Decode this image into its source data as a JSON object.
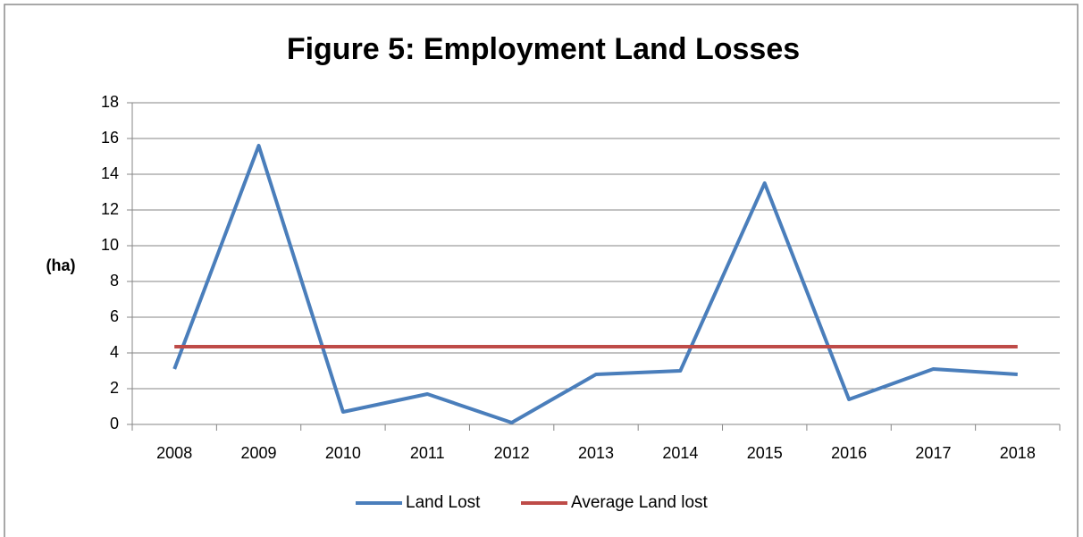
{
  "chart_data": {
    "type": "line",
    "title": "Figure 5: Employment Land Losses",
    "y_label": "(ha)",
    "categories": [
      "2008",
      "2009",
      "2010",
      "2011",
      "2012",
      "2013",
      "2014",
      "2015",
      "2016",
      "2017",
      "2018"
    ],
    "series": [
      {
        "name": "Land Lost",
        "color": "#4a7ebb",
        "values": [
          3.1,
          15.6,
          0.7,
          1.7,
          0.1,
          2.8,
          3.0,
          13.5,
          1.4,
          3.1,
          2.8
        ]
      },
      {
        "name": "Average Land lost",
        "color": "#be4b48",
        "values": [
          4.35,
          4.35,
          4.35,
          4.35,
          4.35,
          4.35,
          4.35,
          4.35,
          4.35,
          4.35,
          4.35
        ]
      }
    ],
    "ylim": [
      0,
      18
    ],
    "yticks": [
      0,
      2,
      4,
      6,
      8,
      10,
      12,
      14,
      16,
      18
    ],
    "grid": true,
    "legend": "bottom"
  }
}
